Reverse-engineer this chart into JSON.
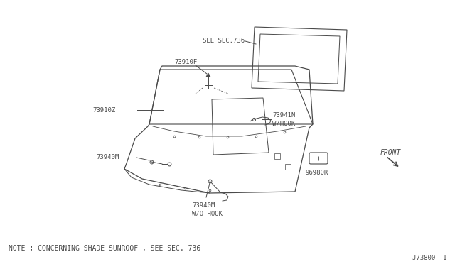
{
  "bg_color": "#ffffff",
  "line_color": "#4a4a4a",
  "text_color": "#4a4a4a",
  "note_text": "NOTE ; CONCERNING SHADE SUNROOF , SEE SEC. 736",
  "ref_number": "J73800  1",
  "labels": {
    "see_sec": "SEE SEC.736",
    "73910F": "73910F",
    "73910Z": "73910Z",
    "73941N": "73941N\nW/HOOK",
    "73940M_top": "73940M",
    "73940M_bot": "73940M\nW/O HOOK",
    "96980R": "96980R",
    "FRONT": "FRONT"
  },
  "font_size_label": 6.5,
  "font_size_note": 7.0,
  "font_size_ref": 6.5
}
